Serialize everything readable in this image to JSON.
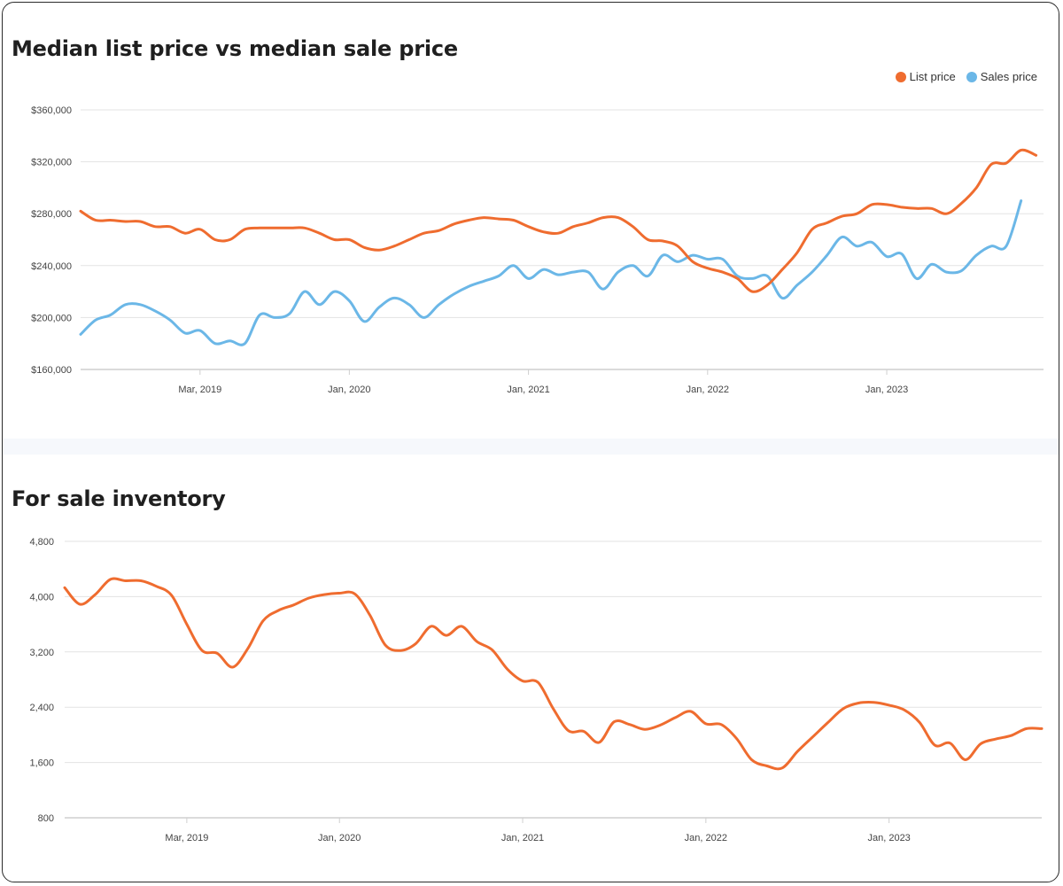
{
  "colors": {
    "list": "#ef6c2f",
    "sales": "#6bb7e7",
    "inventory": "#ef6c2f",
    "grid": "#e3e3e3",
    "axis": "#cfcfcf"
  },
  "chart_data": [
    {
      "type": "line",
      "title": "Median list price vs median sale price",
      "xlabel": "",
      "ylabel": "",
      "legend": "top-right",
      "grid": true,
      "x_start": "2018-07",
      "x_ticks": [
        {
          "label": "Mar, 2019",
          "month": 8
        },
        {
          "label": "Jan, 2020",
          "month": 18
        },
        {
          "label": "Jan, 2021",
          "month": 30
        },
        {
          "label": "Jan, 2022",
          "month": 42
        },
        {
          "label": "Jan, 2023",
          "month": 54
        }
      ],
      "x_range": [
        0,
        64.5
      ],
      "ylim": [
        160000,
        360000
      ],
      "y_ticks": [
        {
          "label": "$160,000",
          "value": 160000
        },
        {
          "label": "$200,000",
          "value": 200000
        },
        {
          "label": "$240,000",
          "value": 240000
        },
        {
          "label": "$280,000",
          "value": 280000
        },
        {
          "label": "$320,000",
          "value": 320000
        },
        {
          "label": "$360,000",
          "value": 360000
        }
      ],
      "series": [
        {
          "name": "List price",
          "color_key": "list",
          "points": [
            [
              0,
              282000
            ],
            [
              1,
              275000
            ],
            [
              2,
              275000
            ],
            [
              3,
              274000
            ],
            [
              4,
              274000
            ],
            [
              5,
              270000
            ],
            [
              6,
              270000
            ],
            [
              7,
              265000
            ],
            [
              8,
              268000
            ],
            [
              9,
              260000
            ],
            [
              10,
              260000
            ],
            [
              11,
              268000
            ],
            [
              12,
              269000
            ],
            [
              13,
              269000
            ],
            [
              14,
              269000
            ],
            [
              15,
              269000
            ],
            [
              16,
              265000
            ],
            [
              17,
              260000
            ],
            [
              18,
              260000
            ],
            [
              19,
              254000
            ],
            [
              20,
              252000
            ],
            [
              21,
              255000
            ],
            [
              22,
              260000
            ],
            [
              23,
              265000
            ],
            [
              24,
              267000
            ],
            [
              25,
              272000
            ],
            [
              26,
              275000
            ],
            [
              27,
              277000
            ],
            [
              28,
              276000
            ],
            [
              29,
              275000
            ],
            [
              30,
              270000
            ],
            [
              31,
              266000
            ],
            [
              32,
              265000
            ],
            [
              33,
              270000
            ],
            [
              34,
              273000
            ],
            [
              35,
              277000
            ],
            [
              36,
              277000
            ],
            [
              37,
              270000
            ],
            [
              38,
              260000
            ],
            [
              39,
              259000
            ],
            [
              40,
              255000
            ],
            [
              41,
              243000
            ],
            [
              42,
              238000
            ],
            [
              43,
              235000
            ],
            [
              44,
              230000
            ],
            [
              45,
              220000
            ],
            [
              46,
              225000
            ],
            [
              47,
              237000
            ],
            [
              48,
              250000
            ],
            [
              49,
              268000
            ],
            [
              50,
              273000
            ],
            [
              51,
              278000
            ],
            [
              52,
              280000
            ],
            [
              53,
              287000
            ],
            [
              54,
              287000
            ],
            [
              55,
              285000
            ],
            [
              56,
              284000
            ],
            [
              57,
              284000
            ],
            [
              58,
              280000
            ],
            [
              59,
              288000
            ],
            [
              60,
              300000
            ],
            [
              61,
              318000
            ],
            [
              62,
              319000
            ],
            [
              63,
              329000
            ],
            [
              64,
              325000
            ]
          ]
        },
        {
          "name": "Sales price",
          "color_key": "sales",
          "points": [
            [
              0,
              187000
            ],
            [
              1,
              198000
            ],
            [
              2,
              202000
            ],
            [
              3,
              210000
            ],
            [
              4,
              210000
            ],
            [
              5,
              205000
            ],
            [
              6,
              198000
            ],
            [
              7,
              188000
            ],
            [
              8,
              190000
            ],
            [
              9,
              180000
            ],
            [
              10,
              182000
            ],
            [
              11,
              180000
            ],
            [
              12,
              202000
            ],
            [
              13,
              200000
            ],
            [
              14,
              203000
            ],
            [
              15,
              220000
            ],
            [
              16,
              210000
            ],
            [
              17,
              220000
            ],
            [
              18,
              213000
            ],
            [
              19,
              197000
            ],
            [
              20,
              208000
            ],
            [
              21,
              215000
            ],
            [
              22,
              210000
            ],
            [
              23,
              200000
            ],
            [
              24,
              210000
            ],
            [
              25,
              218000
            ],
            [
              26,
              224000
            ],
            [
              27,
              228000
            ],
            [
              28,
              232000
            ],
            [
              29,
              240000
            ],
            [
              30,
              230000
            ],
            [
              31,
              237000
            ],
            [
              32,
              233000
            ],
            [
              33,
              235000
            ],
            [
              34,
              235000
            ],
            [
              35,
              222000
            ],
            [
              36,
              235000
            ],
            [
              37,
              240000
            ],
            [
              38,
              232000
            ],
            [
              39,
              248000
            ],
            [
              40,
              243000
            ],
            [
              41,
              248000
            ],
            [
              42,
              245000
            ],
            [
              43,
              245000
            ],
            [
              44,
              232000
            ],
            [
              45,
              230000
            ],
            [
              46,
              232000
            ],
            [
              47,
              215000
            ],
            [
              48,
              225000
            ],
            [
              49,
              235000
            ],
            [
              50,
              248000
            ],
            [
              51,
              262000
            ],
            [
              52,
              255000
            ],
            [
              53,
              258000
            ],
            [
              54,
              247000
            ],
            [
              55,
              249000
            ],
            [
              56,
              230000
            ],
            [
              57,
              241000
            ],
            [
              58,
              235000
            ],
            [
              59,
              236000
            ],
            [
              60,
              248000
            ],
            [
              61,
              255000
            ],
            [
              62,
              255000
            ],
            [
              63,
              290000
            ]
          ]
        }
      ]
    },
    {
      "type": "line",
      "title": "For sale inventory",
      "xlabel": "",
      "ylabel": "",
      "grid": true,
      "x_start": "2018-07",
      "x_ticks": [
        {
          "label": "Mar, 2019",
          "month": 8
        },
        {
          "label": "Jan, 2020",
          "month": 18
        },
        {
          "label": "Jan, 2021",
          "month": 30
        },
        {
          "label": "Jan, 2022",
          "month": 42
        },
        {
          "label": "Jan, 2023",
          "month": 54
        }
      ],
      "x_range": [
        0,
        64
      ],
      "ylim": [
        800,
        4800
      ],
      "y_ticks": [
        {
          "label": "800",
          "value": 800
        },
        {
          "label": "1,600",
          "value": 1600
        },
        {
          "label": "2,400",
          "value": 2400
        },
        {
          "label": "3,200",
          "value": 3200
        },
        {
          "label": "4,000",
          "value": 4000
        },
        {
          "label": "4,800",
          "value": 4800
        }
      ],
      "series": [
        {
          "color_key": "inventory",
          "points": [
            [
              0,
              4130
            ],
            [
              1,
              3890
            ],
            [
              2,
              4030
            ],
            [
              3,
              4250
            ],
            [
              4,
              4230
            ],
            [
              5,
              4230
            ],
            [
              6,
              4150
            ],
            [
              7,
              4020
            ],
            [
              8,
              3600
            ],
            [
              9,
              3220
            ],
            [
              10,
              3180
            ],
            [
              11,
              2980
            ],
            [
              12,
              3250
            ],
            [
              13,
              3650
            ],
            [
              14,
              3800
            ],
            [
              15,
              3880
            ],
            [
              16,
              3980
            ],
            [
              17,
              4030
            ],
            [
              18,
              4050
            ],
            [
              19,
              4040
            ],
            [
              20,
              3730
            ],
            [
              21,
              3300
            ],
            [
              22,
              3220
            ],
            [
              23,
              3320
            ],
            [
              24,
              3570
            ],
            [
              25,
              3440
            ],
            [
              26,
              3570
            ],
            [
              27,
              3350
            ],
            [
              28,
              3230
            ],
            [
              29,
              2950
            ],
            [
              30,
              2780
            ],
            [
              31,
              2760
            ],
            [
              32,
              2380
            ],
            [
              33,
              2060
            ],
            [
              34,
              2050
            ],
            [
              35,
              1890
            ],
            [
              36,
              2190
            ],
            [
              37,
              2150
            ],
            [
              38,
              2080
            ],
            [
              39,
              2140
            ],
            [
              40,
              2250
            ],
            [
              41,
              2340
            ],
            [
              42,
              2160
            ],
            [
              43,
              2150
            ],
            [
              44,
              1950
            ],
            [
              45,
              1640
            ],
            [
              46,
              1550
            ],
            [
              47,
              1520
            ],
            [
              48,
              1760
            ],
            [
              49,
              1970
            ],
            [
              50,
              2180
            ],
            [
              51,
              2380
            ],
            [
              52,
              2460
            ],
            [
              53,
              2470
            ],
            [
              54,
              2430
            ],
            [
              55,
              2360
            ],
            [
              56,
              2180
            ],
            [
              57,
              1850
            ],
            [
              58,
              1880
            ],
            [
              59,
              1640
            ],
            [
              60,
              1870
            ],
            [
              61,
              1940
            ],
            [
              62,
              1990
            ],
            [
              63,
              2090
            ],
            [
              64,
              2090
            ]
          ]
        }
      ]
    }
  ]
}
